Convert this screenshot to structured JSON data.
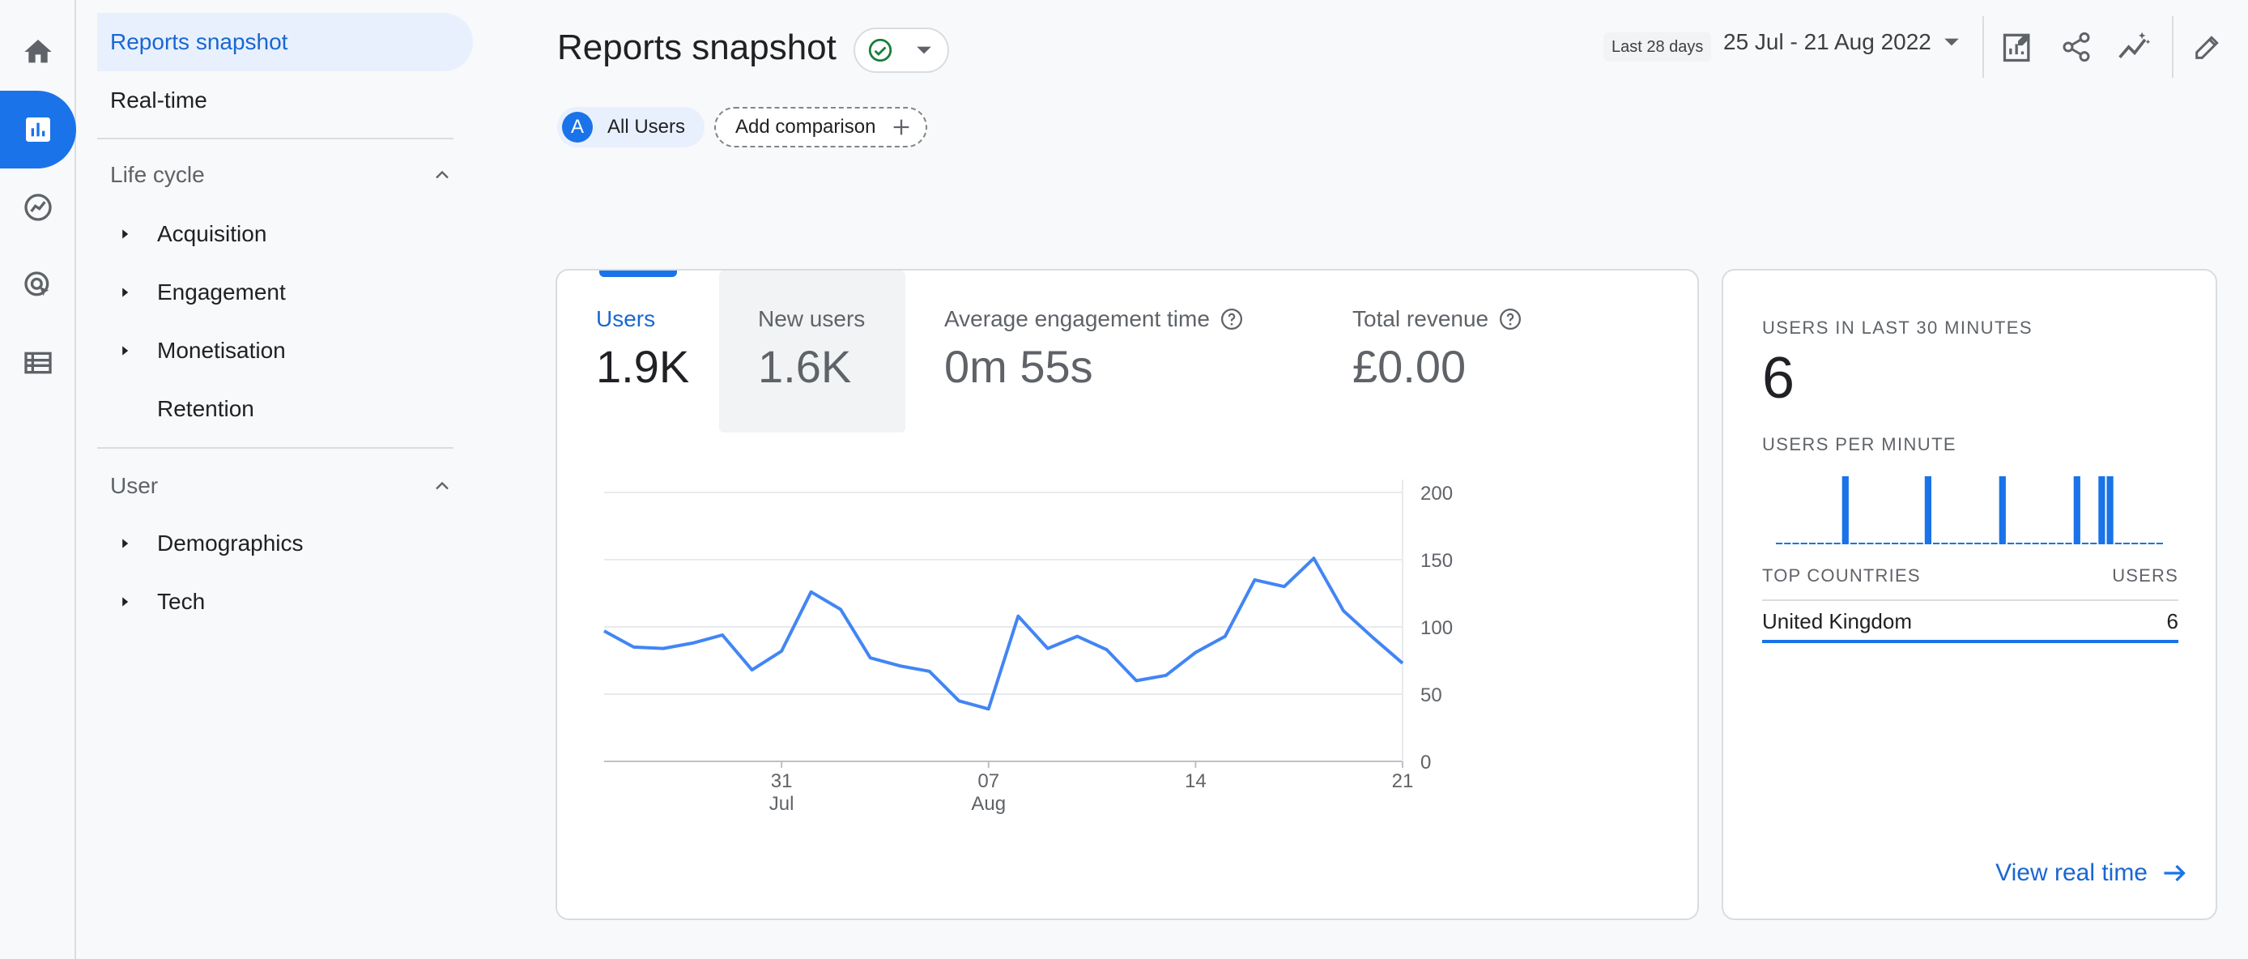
{
  "rail": {
    "items": [
      {
        "name": "home-icon"
      },
      {
        "name": "reports-icon",
        "active": true
      },
      {
        "name": "explore-icon"
      },
      {
        "name": "advertising-icon"
      },
      {
        "name": "configure-icon"
      }
    ]
  },
  "nav": {
    "reports_snapshot": "Reports snapshot",
    "realtime": "Real-time",
    "lifecycle": {
      "title": "Life cycle",
      "items": [
        "Acquisition",
        "Engagement",
        "Monetisation",
        "Retention"
      ]
    },
    "user": {
      "title": "User",
      "items": [
        "Demographics",
        "Tech"
      ]
    }
  },
  "header": {
    "title": "Reports snapshot",
    "date_label": "Last 28 days",
    "date_range": "25 Jul - 21 Aug 2022",
    "icons": [
      "customize-report-icon",
      "share-icon",
      "insights-icon",
      "edit-icon"
    ]
  },
  "comparisons": {
    "avatar": "A",
    "segment": "All Users",
    "add": "Add comparison"
  },
  "metrics": [
    {
      "label": "Users",
      "value": "1.9K"
    },
    {
      "label": "New users",
      "value": "1.6K"
    },
    {
      "label": "Average engagement time",
      "value": "0m 55s"
    },
    {
      "label": "Total revenue",
      "value": "£0.00"
    }
  ],
  "chart_data": {
    "type": "line",
    "series": [
      {
        "values": [
          97,
          85,
          84,
          88,
          94,
          68,
          82,
          126,
          113,
          77,
          71,
          67,
          45,
          39,
          108,
          84,
          93,
          83,
          60,
          64,
          81,
          93,
          135,
          130,
          151,
          112,
          92,
          73
        ]
      }
    ],
    "x_ticks": [
      {
        "index": 6,
        "label": "31",
        "sub": "Jul"
      },
      {
        "index": 13,
        "label": "07",
        "sub": "Aug"
      },
      {
        "index": 20,
        "label": "14",
        "sub": ""
      },
      {
        "index": 27,
        "label": "21",
        "sub": ""
      }
    ],
    "y_ticks": [
      "0",
      "50",
      "100",
      "150",
      "200"
    ],
    "ylim": [
      0,
      200
    ],
    "color": "#4285f4"
  },
  "realtime": {
    "users_label": "USERS IN LAST 30 MINUTES",
    "users_value": "6",
    "per_minute_label": "USERS PER MINUTE",
    "per_minute": [
      0,
      0,
      0,
      0,
      0,
      0,
      0,
      0,
      1,
      0,
      0,
      0,
      0,
      0,
      0,
      0,
      0,
      0,
      1,
      0,
      0,
      0,
      0,
      0,
      0,
      0,
      0,
      1,
      0,
      0,
      0,
      0,
      0,
      0,
      0,
      0,
      1,
      0,
      0,
      1,
      1,
      0,
      0,
      0,
      0,
      0,
      0
    ],
    "top_countries_label": "TOP COUNTRIES",
    "users_col_label": "USERS",
    "rows": [
      {
        "country": "United Kingdom",
        "users": "6"
      }
    ],
    "view_link": "View real time"
  }
}
